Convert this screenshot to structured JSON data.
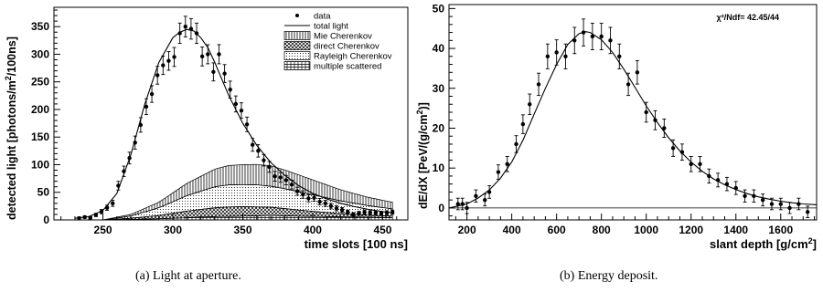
{
  "chart_data": [
    {
      "type": "line",
      "panel": "(a)",
      "xlabel": "time slots [100 ns]",
      "ylabel": "detected light [photons/m²/100ns]",
      "ylabel_parts": [
        "detected light [photons/m",
        "2",
        "/100ns]"
      ],
      "xlim": [
        215,
        468
      ],
      "ylim": [
        0,
        385
      ],
      "xticks": [
        250,
        300,
        350,
        400,
        450
      ],
      "yticks": [
        0,
        50,
        100,
        150,
        200,
        250,
        300,
        350
      ],
      "grid": false,
      "legend_position": "top-right",
      "legend": [
        "data",
        "total light",
        "Mie Cherenkov",
        "direct Cherenkov",
        "Rayleigh Cherenkov",
        "multiple scattered"
      ],
      "series": [
        {
          "name": "data",
          "x": [
            233,
            237,
            241,
            245,
            249,
            253,
            257,
            261,
            265,
            269,
            273,
            277,
            281,
            285,
            289,
            293,
            297,
            301,
            305,
            309,
            313,
            317,
            321,
            325,
            329,
            333,
            337,
            341,
            345,
            349,
            353,
            357,
            361,
            365,
            369,
            373,
            377,
            381,
            385,
            389,
            393,
            397,
            401,
            405,
            409,
            413,
            417,
            421,
            425,
            429,
            433,
            437,
            441,
            445,
            449,
            453,
            457
          ],
          "y": [
            3,
            5,
            4,
            9,
            15,
            22,
            30,
            62,
            88,
            112,
            140,
            172,
            205,
            228,
            262,
            280,
            288,
            295,
            338,
            350,
            346,
            338,
            296,
            300,
            268,
            300,
            265,
            236,
            210,
            198,
            173,
            136,
            125,
            108,
            96,
            79,
            77,
            72,
            64,
            52,
            46,
            39,
            40,
            33,
            30,
            25,
            21,
            18,
            14,
            10,
            12,
            14,
            13,
            13,
            12,
            13,
            14
          ]
        },
        {
          "name": "total light",
          "x": [
            230,
            240,
            250,
            260,
            270,
            280,
            290,
            300,
            305,
            310,
            315,
            320,
            325,
            330,
            340,
            350,
            360,
            370,
            380,
            390,
            400,
            410,
            420,
            430,
            440,
            450,
            457
          ],
          "y": [
            3,
            6,
            17,
            48,
            118,
            210,
            285,
            330,
            340,
            345,
            342,
            330,
            312,
            285,
            225,
            175,
            135,
            104,
            81,
            62,
            48,
            38,
            30,
            24,
            19,
            15,
            13
          ]
        },
        {
          "name": "Mie Cherenkov",
          "x": [
            250,
            270,
            290,
            310,
            330,
            340,
            350,
            360,
            370,
            380,
            400,
            420,
            440,
            457
          ],
          "y": [
            0,
            3,
            10,
            22,
            32,
            35,
            36,
            37,
            37,
            34,
            27,
            20,
            15,
            12
          ]
        },
        {
          "name": "direct Cherenkov",
          "x": [
            250,
            270,
            290,
            310,
            330,
            340,
            350,
            360,
            370,
            380,
            400,
            420,
            440,
            457
          ],
          "y": [
            0,
            2,
            6,
            12,
            16,
            17,
            17,
            16,
            15,
            13,
            9,
            6,
            4,
            3
          ]
        },
        {
          "name": "Rayleigh Cherenkov",
          "x": [
            250,
            270,
            290,
            310,
            330,
            340,
            350,
            360,
            370,
            380,
            400,
            420,
            440,
            457
          ],
          "y": [
            0,
            4,
            14,
            28,
            38,
            40,
            40,
            40,
            38,
            36,
            30,
            23,
            17,
            13
          ]
        },
        {
          "name": "multiple scattered",
          "x": [
            250,
            270,
            290,
            310,
            330,
            350,
            370,
            390,
            410,
            430,
            457
          ],
          "y": [
            0,
            1,
            2,
            4,
            6,
            7,
            8,
            7,
            6,
            5,
            4
          ]
        }
      ]
    },
    {
      "type": "scatter",
      "panel": "(b)",
      "xlabel": "slant depth [g/cm²]",
      "xlabel_parts": [
        "slant depth [g/cm",
        "2",
        "]"
      ],
      "ylabel": "dE/dX [PeV/(g/cm²)]",
      "ylabel_parts": [
        "dE/dX [PeV/(g/cm",
        "2",
        ")]"
      ],
      "xlim": [
        120,
        1760
      ],
      "ylim": [
        -3,
        51
      ],
      "xticks": [
        200,
        400,
        600,
        800,
        1000,
        1200,
        1400,
        1600
      ],
      "yticks": [
        0,
        10,
        20,
        30,
        40,
        50
      ],
      "grid": false,
      "fit_text": "χ²/Ndf= 42.45/44",
      "series": [
        {
          "name": "data",
          "x": [
            160,
            180,
            200,
            240,
            280,
            300,
            340,
            380,
            420,
            450,
            480,
            520,
            560,
            600,
            640,
            680,
            720,
            760,
            800,
            840,
            880,
            920,
            960,
            1000,
            1040,
            1080,
            1120,
            1160,
            1200,
            1240,
            1280,
            1320,
            1360,
            1400,
            1440,
            1480,
            1520,
            1560,
            1600,
            1640,
            1680,
            1720
          ],
          "y": [
            1,
            1,
            0,
            3,
            2,
            4,
            9,
            11,
            16,
            21,
            26,
            31,
            38,
            39,
            38,
            42,
            44,
            43,
            43,
            42,
            38,
            31,
            34,
            24,
            22,
            20,
            15,
            14,
            11,
            11,
            8,
            7,
            6,
            5,
            3,
            3,
            2,
            1,
            1,
            0,
            1,
            -1
          ]
        },
        {
          "name": "fit",
          "x": [
            120,
            160,
            200,
            250,
            300,
            350,
            400,
            450,
            500,
            550,
            600,
            650,
            700,
            730,
            750,
            800,
            850,
            900,
            950,
            1000,
            1050,
            1100,
            1150,
            1200,
            1250,
            1300,
            1350,
            1400,
            1450,
            1500,
            1550,
            1600,
            1650,
            1700,
            1760
          ],
          "y": [
            0,
            0.5,
            1,
            2.5,
            4.5,
            7.5,
            11.5,
            17,
            23.5,
            30,
            36,
            41,
            43.7,
            44.2,
            44,
            42.2,
            39,
            34.8,
            30.2,
            25.6,
            21.4,
            17.6,
            14.3,
            11.5,
            9.2,
            7.3,
            5.8,
            4.6,
            3.6,
            2.8,
            2.2,
            1.7,
            1.3,
            1,
            0.8
          ]
        }
      ]
    }
  ],
  "captions": {
    "a": "(a)  Light at aperture.",
    "b": "(b)  Energy deposit."
  }
}
